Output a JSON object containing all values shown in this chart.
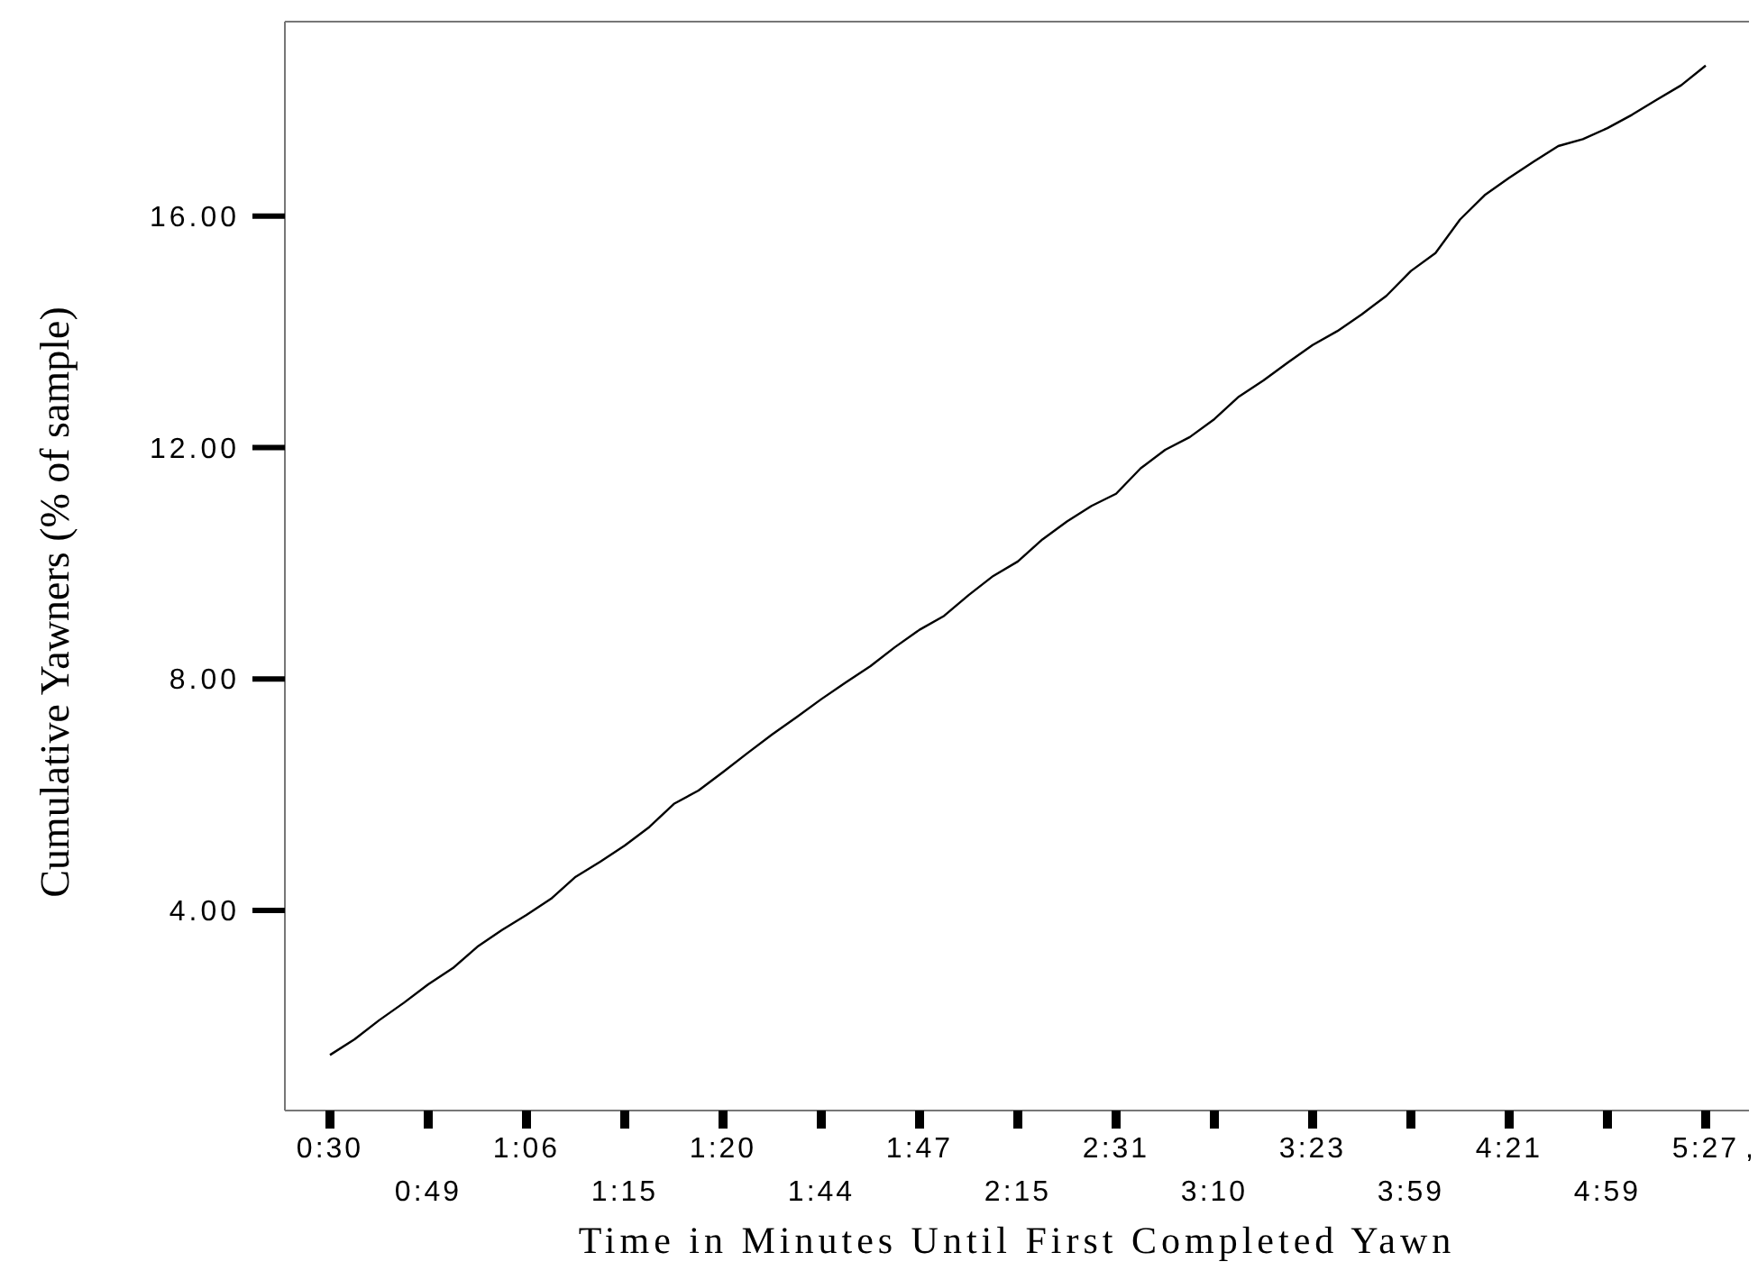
{
  "chart_data": {
    "type": "line",
    "xlabel": "Time in Minutes Until First Completed Yawn",
    "ylabel": "Cumulative Yawners (% of sample)",
    "categories": [
      "0:30",
      null,
      null,
      null,
      "0:49",
      null,
      null,
      null,
      "1:06",
      null,
      null,
      null,
      "1:15",
      null,
      null,
      null,
      "1:20",
      null,
      null,
      null,
      "1:44",
      null,
      null,
      null,
      "1:47",
      null,
      null,
      null,
      "2:15",
      null,
      null,
      null,
      "2:31",
      null,
      null,
      null,
      "3:10",
      null,
      null,
      null,
      "3:23",
      null,
      null,
      null,
      "3:59",
      null,
      null,
      null,
      "4:21",
      null,
      null,
      null,
      "4:59",
      null,
      null,
      null,
      "5:27"
    ],
    "annotations": [
      ","
    ],
    "series": [
      {
        "color": "#000000",
        "values": [
          1.5,
          1.77,
          2.1,
          2.4,
          2.72,
          3.0,
          3.37,
          3.66,
          3.92,
          4.2,
          4.58,
          4.84,
          5.12,
          5.44,
          5.84,
          6.07,
          6.39,
          6.72,
          7.04,
          7.34,
          7.65,
          7.94,
          8.22,
          8.55,
          8.85,
          9.09,
          9.45,
          9.78,
          10.03,
          10.41,
          10.72,
          10.99,
          11.2,
          11.64,
          11.96,
          12.18,
          12.49,
          12.88,
          13.16,
          13.47,
          13.77,
          14.01,
          14.3,
          14.62,
          15.05,
          15.36,
          15.94,
          16.36,
          16.66,
          16.94,
          17.21,
          17.33,
          17.52,
          17.75,
          18.01,
          18.26,
          18.6
        ]
      }
    ],
    "ylim": [
      0.54,
      19.36
    ],
    "yticks": [
      {
        "value": 4,
        "label": "4.00"
      },
      {
        "value": 8,
        "label": "8.00"
      },
      {
        "value": 12,
        "label": "12.00"
      },
      {
        "value": 16,
        "label": "16.00"
      }
    ],
    "grid": false
  }
}
